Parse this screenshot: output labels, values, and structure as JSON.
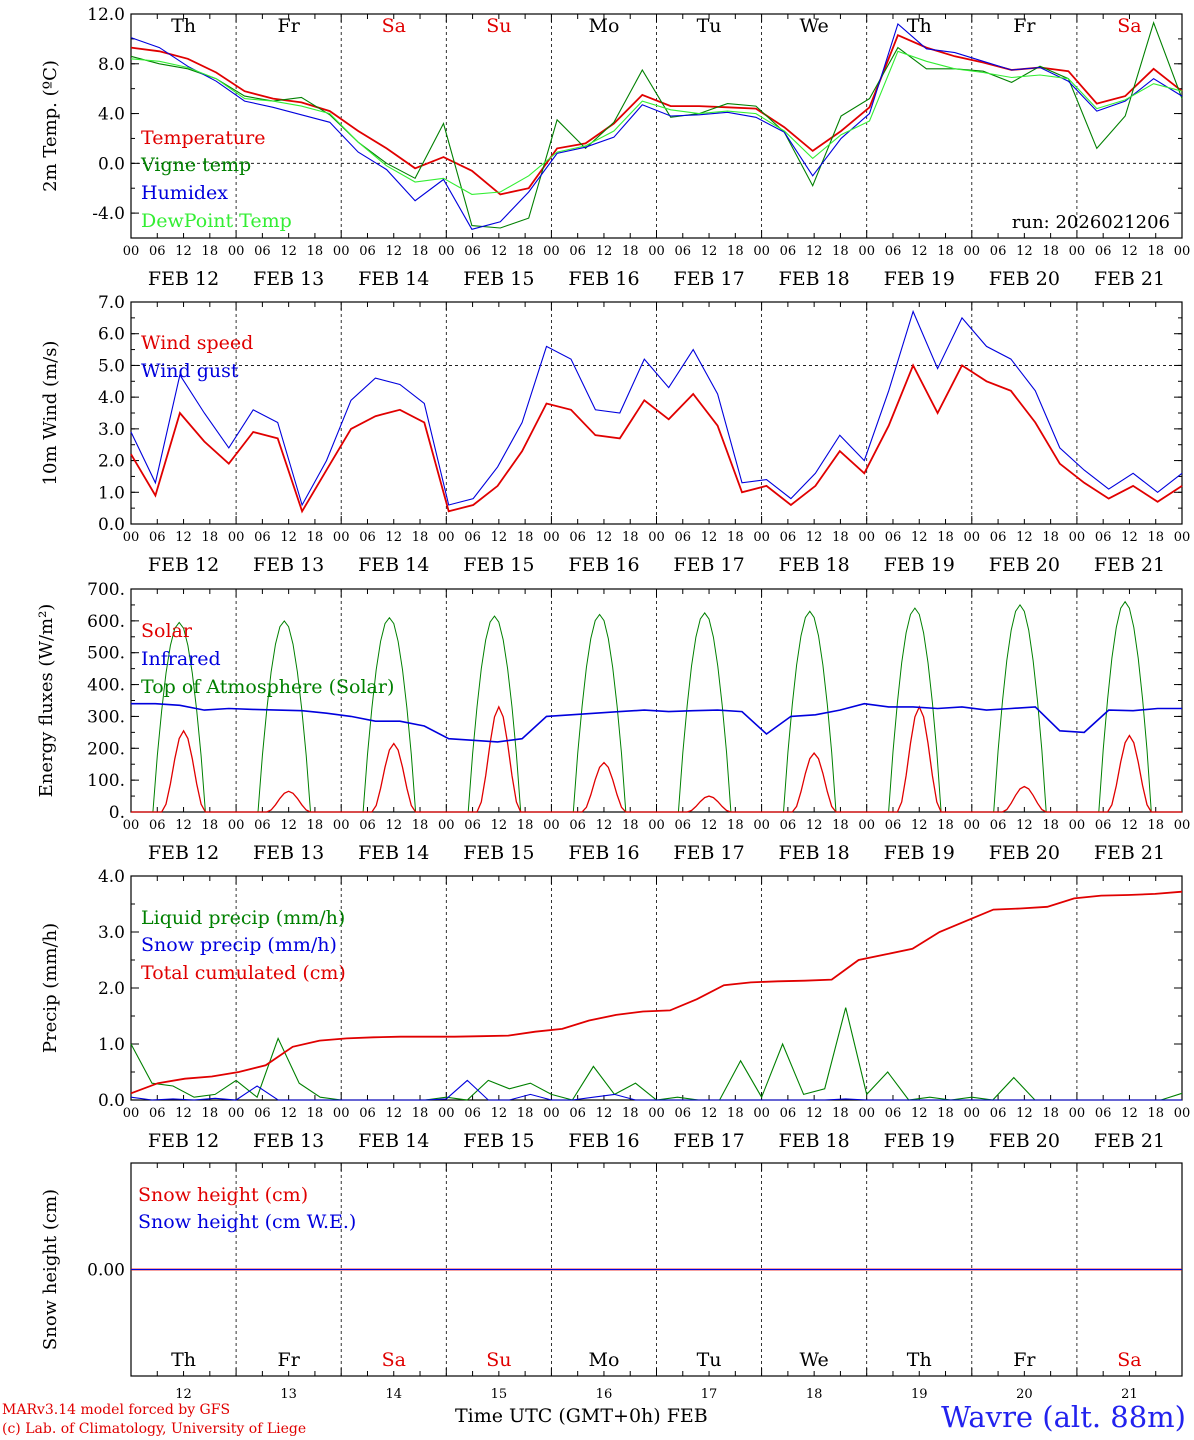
{
  "colors": {
    "red": "#e00000",
    "green": "#008000",
    "blue": "#0000dd",
    "lightgreen": "#33ee33",
    "axis": "#000000",
    "dark": "#000000"
  },
  "chart_data": [
    {
      "type": "line",
      "panel": "temperature",
      "ylabel": "2m Temp. (ºC)",
      "ylim": [
        -6,
        12
      ],
      "yticks": [
        "12.0",
        "8.0",
        "4.0",
        "0.0",
        "-4.0"
      ],
      "ytick_values": [
        12,
        8,
        4,
        0,
        -4
      ],
      "dashed_ref": 0,
      "run_label": "run: 2026021206",
      "day_labels": [
        {
          "t": "Th",
          "c": "dark"
        },
        {
          "t": "Fr",
          "c": "dark"
        },
        {
          "t": "Sa",
          "c": "red"
        },
        {
          "t": "Su",
          "c": "red"
        },
        {
          "t": "Mo",
          "c": "dark"
        },
        {
          "t": "Tu",
          "c": "dark"
        },
        {
          "t": "We",
          "c": "dark"
        },
        {
          "t": "Th",
          "c": "dark"
        },
        {
          "t": "Fr",
          "c": "dark"
        },
        {
          "t": "Sa",
          "c": "red"
        }
      ],
      "x_hours": [
        0,
        6,
        12,
        18,
        24,
        30,
        36,
        42,
        48,
        54,
        60,
        66,
        72,
        78,
        84,
        90,
        96,
        102,
        108,
        114,
        120,
        126,
        132,
        138,
        144,
        150,
        156,
        162,
        168,
        174,
        180,
        186,
        192,
        198,
        204,
        210,
        216,
        222,
        228,
        234,
        240
      ],
      "series": [
        {
          "name": "Temperature",
          "color": "red",
          "values": [
            9.3,
            9.0,
            8.4,
            7.3,
            5.8,
            5.2,
            4.9,
            4.2,
            2.6,
            1.2,
            -0.4,
            0.5,
            -0.6,
            -2.5,
            -2.0,
            1.2,
            1.6,
            3.2,
            5.5,
            4.6,
            4.6,
            4.5,
            4.4,
            2.9,
            1.0,
            2.6,
            4.5,
            10.3,
            9.3,
            8.6,
            8.1,
            7.5,
            7.7,
            7.4,
            4.8,
            5.4,
            7.6,
            5.8
          ]
        },
        {
          "name": "Vigne temp",
          "color": "green",
          "values": [
            8.6,
            8.0,
            7.6,
            6.8,
            5.4,
            5.0,
            5.3,
            3.9,
            1.7,
            0.0,
            -1.2,
            3.2,
            -5.0,
            -5.2,
            -4.4,
            3.5,
            1.2,
            3.3,
            7.5,
            3.7,
            4.0,
            4.8,
            4.6,
            2.5,
            -1.8,
            3.8,
            5.2,
            9.3,
            7.6,
            7.6,
            7.4,
            6.5,
            7.8,
            6.8,
            1.2,
            3.8,
            11.3,
            5.2
          ]
        },
        {
          "name": "Humidex",
          "color": "blue",
          "values": [
            10.1,
            9.3,
            7.8,
            6.6,
            5.0,
            4.5,
            3.9,
            3.3,
            0.9,
            -0.5,
            -3.0,
            -1.3,
            -5.3,
            -4.7,
            -2.3,
            0.8,
            1.3,
            2.1,
            4.7,
            3.8,
            3.9,
            4.1,
            3.7,
            2.5,
            -1.0,
            2.0,
            4.0,
            11.2,
            9.2,
            8.9,
            8.2,
            7.5,
            7.7,
            6.6,
            4.2,
            5.0,
            6.8,
            5.4
          ]
        },
        {
          "name": "DewPoint Temp",
          "color": "lightgreen",
          "values": [
            8.4,
            8.2,
            7.7,
            6.8,
            5.2,
            5.0,
            4.6,
            4.0,
            1.7,
            -0.2,
            -1.5,
            -1.2,
            -2.5,
            -2.3,
            -1.0,
            0.9,
            1.4,
            2.6,
            5.0,
            4.3,
            4.0,
            4.2,
            4.0,
            2.6,
            0.4,
            2.3,
            3.4,
            9.0,
            8.2,
            7.6,
            7.3,
            6.9,
            7.1,
            6.8,
            4.4,
            5.1,
            6.4,
            5.8
          ]
        }
      ]
    },
    {
      "type": "line",
      "panel": "wind",
      "ylabel": "10m Wind (m/s)",
      "ylim": [
        0,
        7
      ],
      "yticks": [
        "7.0",
        "6.0",
        "5.0",
        "4.0",
        "3.0",
        "2.0",
        "1.0",
        "0.0"
      ],
      "ytick_values": [
        7,
        6,
        5,
        4,
        3,
        2,
        1,
        0
      ],
      "dashed_ref": 5,
      "series": [
        {
          "name": "Wind speed",
          "color": "red",
          "values": [
            2.2,
            0.9,
            3.5,
            2.6,
            1.9,
            2.9,
            2.7,
            0.4,
            1.7,
            3.0,
            3.4,
            3.6,
            3.2,
            0.4,
            0.6,
            1.2,
            2.3,
            3.8,
            3.6,
            2.8,
            2.7,
            3.9,
            3.3,
            4.1,
            3.1,
            1.0,
            1.2,
            0.6,
            1.2,
            2.3,
            1.6,
            3.1,
            5.0,
            3.5,
            5.0,
            4.5,
            4.2,
            3.2,
            1.9,
            1.3,
            0.8,
            1.2,
            0.7,
            1.2
          ]
        },
        {
          "name": "Wind gust",
          "color": "blue",
          "values": [
            2.9,
            1.3,
            4.7,
            3.5,
            2.4,
            3.6,
            3.2,
            0.6,
            2.0,
            3.9,
            4.6,
            4.4,
            3.8,
            0.6,
            0.8,
            1.8,
            3.2,
            5.6,
            5.2,
            3.6,
            3.5,
            5.2,
            4.3,
            5.5,
            4.1,
            1.3,
            1.4,
            0.8,
            1.6,
            2.8,
            2.0,
            4.2,
            6.7,
            4.9,
            6.5,
            5.6,
            5.2,
            4.2,
            2.4,
            1.7,
            1.1,
            1.6,
            1.0,
            1.6
          ]
        }
      ]
    },
    {
      "type": "line",
      "panel": "energy",
      "ylabel": "Energy fluxes (W/m²)",
      "ylim": [
        0,
        700
      ],
      "yticks": [
        "700.",
        "600.",
        "500.",
        "400.",
        "300.",
        "200.",
        "100.",
        "0."
      ],
      "ytick_values": [
        700,
        600,
        500,
        400,
        300,
        200,
        100,
        0
      ],
      "solar_peaks": [
        255,
        65,
        215,
        330,
        155,
        50,
        185,
        330,
        80,
        240
      ],
      "toa_peaks": [
        595,
        600,
        610,
        615,
        620,
        625,
        630,
        640,
        650,
        660
      ],
      "series": [
        {
          "name": "Solar",
          "color": "red",
          "values": []
        },
        {
          "name": "Infrared",
          "color": "blue",
          "values": [
            340,
            340,
            335,
            320,
            325,
            322,
            320,
            318,
            310,
            300,
            285,
            285,
            270,
            230,
            225,
            220,
            230,
            300,
            305,
            310,
            315,
            320,
            315,
            318,
            320,
            315,
            245,
            300,
            305,
            320,
            340,
            330,
            330,
            325,
            330,
            320,
            325,
            330,
            255,
            250,
            320,
            318,
            325,
            325
          ]
        },
        {
          "name": "Top of Atmosphere (Solar)",
          "color": "green",
          "values": []
        }
      ]
    },
    {
      "type": "line",
      "panel": "precip",
      "ylabel": "Precip (mm/h)",
      "ylim": [
        0,
        4
      ],
      "yticks": [
        "4.0",
        "3.0",
        "2.0",
        "1.0",
        "0.0"
      ],
      "ytick_values": [
        4,
        3,
        2,
        1,
        0
      ],
      "series": [
        {
          "name": "Liquid precip (mm/h)",
          "color": "green",
          "values": [
            1.0,
            0.3,
            0.25,
            0.05,
            0.1,
            0.35,
            0.05,
            1.1,
            0.3,
            0.05,
            0.0,
            0.0,
            0.0,
            0.0,
            0.0,
            0.05,
            0.0,
            0.35,
            0.2,
            0.3,
            0.1,
            0.0,
            0.6,
            0.1,
            0.3,
            0.0,
            0.05,
            0.0,
            0.0,
            0.7,
            0.05,
            1.0,
            0.1,
            0.2,
            1.65,
            0.1,
            0.5,
            0.0,
            0.05,
            0.0,
            0.05,
            0.0,
            0.4,
            0.0,
            0.0,
            0.0,
            0.0,
            0.0,
            0.0,
            0.0,
            0.12
          ]
        },
        {
          "name": "Snow precip (mm/h)",
          "color": "blue",
          "values": [
            0.05,
            0.0,
            0.02,
            0.0,
            0.03,
            0.0,
            0.25,
            0.0,
            0.0,
            0.0,
            0.0,
            0.0,
            0.0,
            0.0,
            0.0,
            0.02,
            0.35,
            0.0,
            0.0,
            0.1,
            0.0,
            0.0,
            0.05,
            0.1,
            0.0,
            0.0,
            0.0,
            0.0,
            0.0,
            0.0,
            0.0,
            0.0,
            0.0,
            0.0,
            0.02,
            0.0,
            0.0,
            0.0,
            0.0,
            0.0,
            0.0,
            0.0,
            0.0,
            0.0,
            0.0,
            0.0,
            0.0,
            0.0,
            0.0,
            0.0,
            0.0
          ]
        },
        {
          "name": "Total cumulated (cm)",
          "color": "red",
          "values": [
            0.12,
            0.3,
            0.38,
            0.42,
            0.5,
            0.62,
            0.95,
            1.06,
            1.1,
            1.12,
            1.13,
            1.13,
            1.13,
            1.14,
            1.15,
            1.22,
            1.27,
            1.42,
            1.52,
            1.58,
            1.6,
            1.8,
            2.05,
            2.1,
            2.12,
            2.13,
            2.15,
            2.5,
            2.6,
            2.7,
            3.0,
            3.2,
            3.4,
            3.42,
            3.45,
            3.6,
            3.65,
            3.66,
            3.68,
            3.72
          ]
        }
      ]
    },
    {
      "type": "line",
      "panel": "snow",
      "ylabel": "Snow height (cm)",
      "ylim": [
        -1,
        1
      ],
      "yticks": [
        "0.00"
      ],
      "ytick_values": [
        0
      ],
      "series": [
        {
          "name": "Snow height (cm)",
          "color": "red",
          "values": [
            0,
            0
          ]
        },
        {
          "name": "Snow height (cm W.E.)",
          "color": "blue",
          "values": [
            0,
            0
          ]
        }
      ]
    }
  ],
  "x_axis": {
    "hour_ticks": [
      "00",
      "06",
      "12",
      "18"
    ],
    "end_tick": "00",
    "date_labels": [
      "FEB 12",
      "FEB 13",
      "FEB 14",
      "FEB 15",
      "FEB 16",
      "FEB 17",
      "FEB 18",
      "FEB 19",
      "FEB 20",
      "FEB 21"
    ],
    "bottom_day_numbers": [
      "12",
      "13",
      "14",
      "15",
      "16",
      "17",
      "18",
      "19",
      "20",
      "21"
    ],
    "xlabel": "Time UTC (GMT+0h) FEB"
  },
  "footer": {
    "credit_line1": "MARv3.14 model forced by GFS",
    "credit_line2": "(c) Lab. of Climatology, University of Liege",
    "location": "Wavre (alt. 88m)"
  }
}
